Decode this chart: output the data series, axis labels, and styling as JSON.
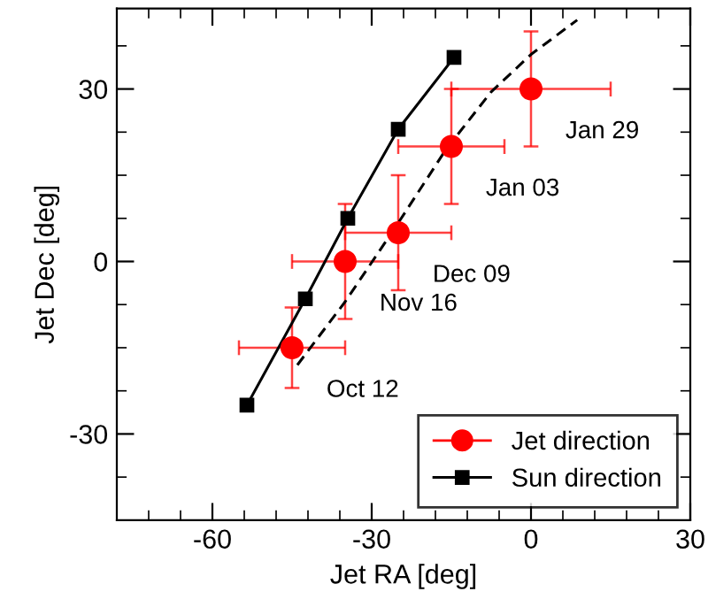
{
  "chart_data": {
    "type": "scatter",
    "xlabel": "Jet RA [deg]",
    "ylabel": "Jet Dec [deg]",
    "xlim": [
      -78,
      30
    ],
    "ylim": [
      -45,
      44
    ],
    "xticks": [
      {
        "value": -72,
        "label": null
      },
      {
        "value": -66,
        "label": null
      },
      -60,
      {
        "value": -54,
        "label": null
      },
      {
        "value": -48,
        "label": null
      },
      {
        "value": -42,
        "label": null
      },
      {
        "value": -36,
        "label": null
      },
      -30,
      {
        "value": -24,
        "label": null
      },
      {
        "value": -18,
        "label": null
      },
      {
        "value": -12,
        "label": null
      },
      {
        "value": -6,
        "label": null
      },
      0,
      {
        "value": 6,
        "label": null
      },
      {
        "value": 12,
        "label": null
      },
      {
        "value": 18,
        "label": null
      },
      {
        "value": 24,
        "label": null
      },
      30
    ],
    "yticks": [
      {
        "value": -37.5,
        "label": null
      },
      -30,
      {
        "value": -22.5,
        "label": null
      },
      {
        "value": -15,
        "label": null
      },
      {
        "value": -7.5,
        "label": null
      },
      0,
      {
        "value": 7.5,
        "label": null
      },
      {
        "value": 15,
        "label": null
      },
      {
        "value": 22.5,
        "label": null
      },
      30,
      {
        "value": 37.5,
        "label": null
      }
    ],
    "grid": false,
    "legend": "bottom right",
    "series": [
      {
        "name": null,
        "type": "line",
        "color": "#000000",
        "line_style": "dashed",
        "marker": "none",
        "x": [
          -44,
          -35,
          -25.5,
          -16,
          -7.5,
          0,
          8.7
        ],
        "values": [
          -18,
          -7,
          6,
          19.5,
          29.5,
          36,
          42
        ]
      },
      {
        "name": "Jet direction",
        "color": "#ff0000",
        "marker": "circle",
        "x": [
          -45,
          -35,
          -25,
          -15,
          0
        ],
        "values": [
          -15,
          0,
          5,
          20,
          30
        ],
        "errors": [
          7,
          10,
          10,
          10,
          10
        ],
        "xerrors": [
          10,
          10,
          10,
          10,
          15
        ]
      },
      {
        "name": "Sun direction",
        "type": "line",
        "color": "#000000",
        "marker": "square",
        "line_style": "solid",
        "x": [
          -53.5,
          -42.5,
          -34.5,
          -25,
          -14.5
        ],
        "values": [
          -25,
          -6.5,
          7.5,
          23,
          35.5
        ]
      }
    ],
    "annotations": [
      {
        "text": "Oct 12",
        "x": -45,
        "y": -15
      },
      {
        "text": "Nov 16",
        "x": -35,
        "y": 0
      },
      {
        "text": "Dec 09",
        "x": -25,
        "y": 5
      },
      {
        "text": "Jan 03",
        "x": -15,
        "y": 20
      },
      {
        "text": "Jan 29",
        "x": 0,
        "y": 30
      }
    ]
  }
}
